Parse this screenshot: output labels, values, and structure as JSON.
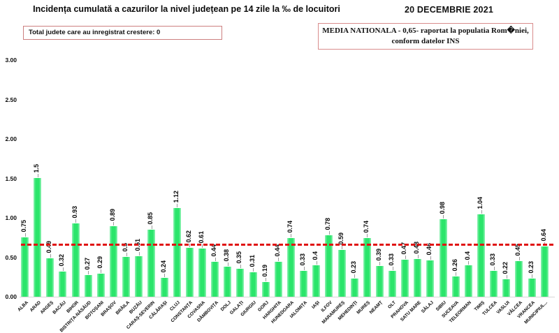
{
  "header": {
    "title": "Incidența cumulată a cazurilor la nivel județean pe 14 zile la ‰ de locuitori",
    "date": "20 DECEMBRIE 2021"
  },
  "info_boxes": {
    "left_text": "Total judete care au inregistrat crestere: 0",
    "right_line1": "MEDIA NATIONALA - 0,65-  raportat la populatia  Rom�niei,",
    "right_line2": "conform datelor INS"
  },
  "colors": {
    "bar_green": "#2be56b",
    "reference_red": "#e01212",
    "box_border_pink": "#d98c8c",
    "text": "#0a0a0a"
  },
  "chart_data": {
    "type": "bar",
    "title": "Incidența cumulată a cazurilor la nivel județean pe 14 zile la ‰ de locuitori",
    "xlabel": "",
    "ylabel": "",
    "ylim": [
      0,
      3.0
    ],
    "yticks": [
      "0.00",
      "0.50",
      "1.00",
      "1.50",
      "2.00",
      "2.50",
      "3.00"
    ],
    "grid": false,
    "legend": false,
    "reference_line": {
      "value": 0.65,
      "label": "MEDIA NATIONALA",
      "color": "#e01212",
      "style": "dashed"
    },
    "categories": [
      "ALBA",
      "ARAD",
      "ARGEȘ",
      "BACĂU",
      "BIHOR",
      "BISTRIȚA-NĂSĂUD",
      "BOTOȘANI",
      "BRAȘOV",
      "BRĂILA",
      "BUZĂU",
      "CARAȘ-SEVERIN",
      "CĂLĂRAȘI",
      "CLUJ",
      "CONSTANȚA",
      "COVASNA",
      "DÂMBOVIȚA",
      "DOLJ",
      "GALAȚI",
      "GIURGIU",
      "GORJ",
      "HARGHITA",
      "HUNEDOARA",
      "IALOMIȚA",
      "IAȘI",
      "ILFOV",
      "MARAMUREȘ",
      "MEHEDINȚI",
      "MUREȘ",
      "NEAMȚ",
      "OLT",
      "PRAHOVA",
      "SATU MARE",
      "SĂLAJ",
      "SIBIU",
      "SUCEAVA",
      "TELEORMAN",
      "TIMIȘ",
      "TULCEA",
      "VASLUI",
      "VÂLCEA",
      "VRANCEA",
      "MUNICIPIUL..."
    ],
    "values": [
      0.75,
      1.5,
      0.49,
      0.32,
      0.93,
      0.27,
      0.29,
      0.89,
      0.5,
      0.51,
      0.85,
      0.24,
      1.12,
      0.62,
      0.61,
      0.44,
      0.38,
      0.35,
      0.31,
      0.19,
      0.44,
      0.74,
      0.33,
      0.4,
      0.78,
      0.59,
      0.23,
      0.74,
      0.39,
      0.33,
      0.47,
      0.48,
      0.46,
      0.98,
      0.26,
      0.4,
      1.04,
      0.33,
      0.22,
      0.45,
      0.23,
      0.64
    ],
    "value_labels": [
      "0.75",
      "1.5",
      "0.49",
      "0.32",
      "0.93",
      "0.27",
      "0.29",
      "0.89",
      "0.5",
      "0.51",
      "0.85",
      "0.24",
      "1.12",
      "0.62",
      "0.61",
      "0.44",
      "0.38",
      "0.35",
      "0.31",
      "0.19",
      "0.44",
      "0.74",
      "0.33",
      "0.4",
      "0.78",
      "0.59",
      "0.23",
      "0.74",
      "0.39",
      "0.33",
      "0.47",
      "0.48",
      "0.46",
      "0.98",
      "0.26",
      "0.4",
      "1.04",
      "0.33",
      "0.22",
      "0.45",
      "0.23",
      "0.64"
    ]
  }
}
